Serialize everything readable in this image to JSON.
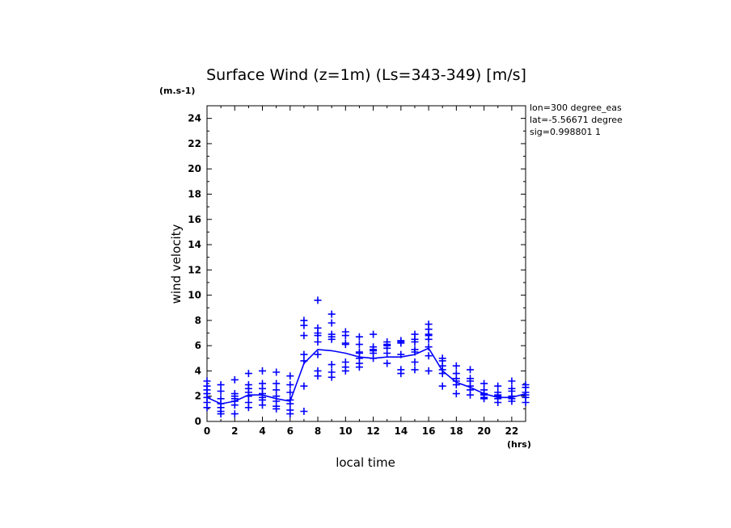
{
  "chart_data": {
    "type": "scatter",
    "title": "Surface Wind (z=1m) (Ls=343-349) [m/s]",
    "y_unit": "(m.s-1)",
    "x_unit": "(hrs)",
    "xlabel": "local time",
    "ylabel": "wind velocity",
    "xlim": [
      0,
      23
    ],
    "ylim": [
      0,
      25
    ],
    "x_ticks": [
      0,
      2,
      4,
      6,
      8,
      10,
      12,
      14,
      16,
      18,
      20,
      22
    ],
    "y_ticks": [
      0,
      2,
      4,
      6,
      8,
      10,
      12,
      14,
      16,
      18,
      20,
      22,
      24
    ],
    "info_lines": [
      "lon=300 degree_eas",
      "lat=-5.56671 degree",
      "sig=0.998801 1"
    ],
    "color": "#0000ff",
    "grid": false,
    "mean_line": {
      "x": [
        0,
        1,
        2,
        3,
        4,
        5,
        6,
        7,
        8,
        9,
        10,
        11,
        12,
        13,
        14,
        15,
        16,
        17,
        18,
        19,
        20,
        21,
        22,
        23
      ],
      "y": [
        1.9,
        1.4,
        1.6,
        2.1,
        2.1,
        1.8,
        1.6,
        4.6,
        5.7,
        5.6,
        5.4,
        5.1,
        5.0,
        5.1,
        5.1,
        5.3,
        5.8,
        4.0,
        3.1,
        2.7,
        2.2,
        1.9,
        1.9,
        2.2
      ]
    },
    "points": [
      {
        "x": 0,
        "values": [
          3.2,
          2.8,
          2.5,
          2.2,
          1.9,
          1.5,
          1.1
        ]
      },
      {
        "x": 1,
        "values": [
          2.9,
          2.4,
          1.8,
          1.4,
          1.1,
          0.8,
          0.6
        ]
      },
      {
        "x": 2,
        "values": [
          3.3,
          2.2,
          2.0,
          1.8,
          1.6,
          1.3,
          0.6
        ]
      },
      {
        "x": 3,
        "values": [
          3.8,
          2.9,
          2.6,
          2.3,
          2.0,
          1.5,
          1.1
        ]
      },
      {
        "x": 4,
        "values": [
          4.0,
          3.0,
          2.6,
          2.2,
          1.9,
          1.7,
          1.3
        ]
      },
      {
        "x": 5,
        "values": [
          3.9,
          3.0,
          2.5,
          2.0,
          1.6,
          1.2,
          1.0
        ]
      },
      {
        "x": 6,
        "values": [
          3.6,
          2.9,
          2.3,
          1.7,
          1.4,
          0.9,
          0.6
        ]
      },
      {
        "x": 7,
        "values": [
          8.0,
          7.6,
          6.8,
          5.3,
          4.8,
          2.8,
          0.8
        ]
      },
      {
        "x": 8,
        "values": [
          9.6,
          7.4,
          7.0,
          6.8,
          6.3,
          5.3,
          4.0,
          3.6
        ]
      },
      {
        "x": 9,
        "values": [
          8.5,
          7.8,
          6.9,
          6.7,
          6.5,
          4.5,
          3.9,
          3.5
        ]
      },
      {
        "x": 10,
        "values": [
          7.1,
          6.8,
          6.2,
          6.1,
          4.7,
          4.3,
          4.0
        ]
      },
      {
        "x": 11,
        "values": [
          6.7,
          6.1,
          5.5,
          5.4,
          5.0,
          4.6,
          4.3
        ]
      },
      {
        "x": 12,
        "values": [
          6.9,
          5.9,
          5.7,
          5.6,
          5.4,
          5.0
        ]
      },
      {
        "x": 13,
        "values": [
          6.3,
          6.1,
          6.0,
          5.8,
          5.4,
          4.6
        ]
      },
      {
        "x": 14,
        "values": [
          6.4,
          6.3,
          6.2,
          5.3,
          4.1,
          3.8
        ]
      },
      {
        "x": 15,
        "values": [
          6.9,
          6.5,
          6.3,
          5.7,
          5.5,
          4.7,
          4.1
        ]
      },
      {
        "x": 16,
        "values": [
          7.7,
          7.3,
          6.9,
          6.8,
          6.5,
          5.9,
          5.2,
          4.0
        ]
      },
      {
        "x": 17,
        "values": [
          5.0,
          4.8,
          4.4,
          4.1,
          3.8,
          2.8
        ]
      },
      {
        "x": 18,
        "values": [
          4.4,
          3.8,
          3.4,
          3.2,
          2.9,
          2.2
        ]
      },
      {
        "x": 19,
        "values": [
          4.1,
          3.4,
          3.2,
          2.8,
          2.5,
          2.1
        ]
      },
      {
        "x": 20,
        "values": [
          3.0,
          2.5,
          2.2,
          2.1,
          1.9,
          1.8
        ]
      },
      {
        "x": 21,
        "values": [
          2.8,
          2.3,
          2.1,
          2.0,
          1.8,
          1.5
        ]
      },
      {
        "x": 22,
        "values": [
          3.2,
          2.6,
          2.4,
          2.0,
          1.8,
          1.6
        ]
      },
      {
        "x": 23,
        "values": [
          2.9,
          2.7,
          2.3,
          2.1,
          1.9,
          1.5
        ]
      }
    ]
  }
}
